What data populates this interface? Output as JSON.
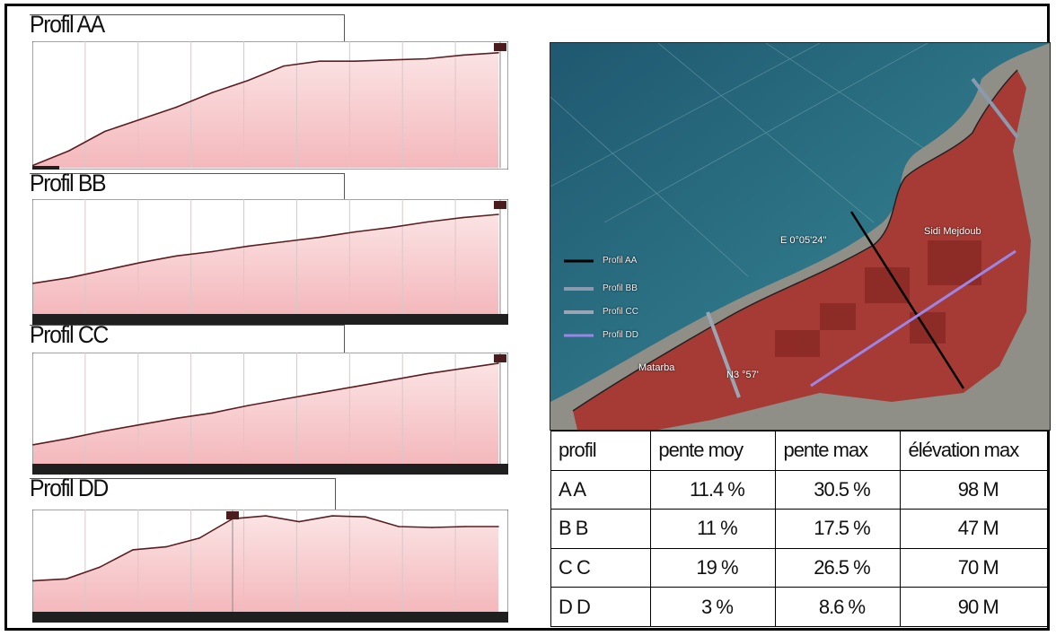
{
  "chart_data": [
    {
      "type": "area",
      "title": "Profil AA",
      "x": [
        0,
        1,
        2,
        3,
        4,
        5,
        6,
        7,
        8,
        9,
        10,
        11,
        12,
        13
      ],
      "y": [
        2,
        14,
        30,
        40,
        50,
        62,
        72,
        84,
        88,
        88,
        89,
        90,
        93,
        95
      ],
      "color": "#f4b8bc"
    },
    {
      "type": "area",
      "title": "Profil BB",
      "x": [
        0,
        1,
        2,
        3,
        4,
        5,
        6,
        7,
        8,
        9,
        10,
        11,
        12,
        13
      ],
      "y": [
        28,
        33,
        40,
        47,
        53,
        57,
        62,
        66,
        70,
        75,
        79,
        84,
        88,
        91
      ],
      "color": "#f4b8bc"
    },
    {
      "type": "area",
      "title": "Profil CC",
      "x": [
        0,
        1,
        2,
        3,
        4,
        5,
        6,
        7,
        8,
        9,
        10,
        11,
        12,
        13
      ],
      "y": [
        18,
        24,
        31,
        37,
        43,
        48,
        55,
        61,
        67,
        73,
        79,
        85,
        90,
        95
      ],
      "color": "#f4b8bc"
    },
    {
      "type": "area",
      "title": "Profil DD",
      "x": [
        0,
        1,
        2,
        3,
        4,
        5,
        6,
        7,
        8,
        9,
        10,
        11,
        12,
        13,
        14
      ],
      "y": [
        32,
        34,
        46,
        64,
        67,
        76,
        96,
        99,
        93,
        99,
        98,
        88,
        87,
        88,
        88
      ],
      "color": "#f4b8bc"
    },
    {
      "type": "table",
      "columns": [
        "profil",
        "pente moy",
        "pente max",
        "élévation max"
      ],
      "rows": [
        [
          "A A",
          "11.4 %",
          "30.5 %",
          "98 M"
        ],
        [
          "B B",
          "11 %",
          "17.5 %",
          "47 M"
        ],
        [
          "C C",
          "19 %",
          "26.5 %",
          "70 M"
        ],
        [
          "D D",
          "3 %",
          "8.6 %",
          "90 M"
        ]
      ]
    }
  ],
  "map": {
    "legend": [
      "Profil AA",
      "Profil BB",
      "Profil CC",
      "Profil DD"
    ],
    "labels": {
      "coord_e": "E 0°05'24\"",
      "coord_n": "N3 °57'",
      "place1": "Sidi Mejdoub",
      "place2": "Matarba"
    },
    "colors": {
      "sea": "#2f6f86",
      "urban": "#a8322c",
      "profil_aa": "#000000",
      "profil_bb": "#8a9bb0",
      "profil_cc": "#9aa6b4",
      "profil_dd": "#9b86e8"
    }
  }
}
